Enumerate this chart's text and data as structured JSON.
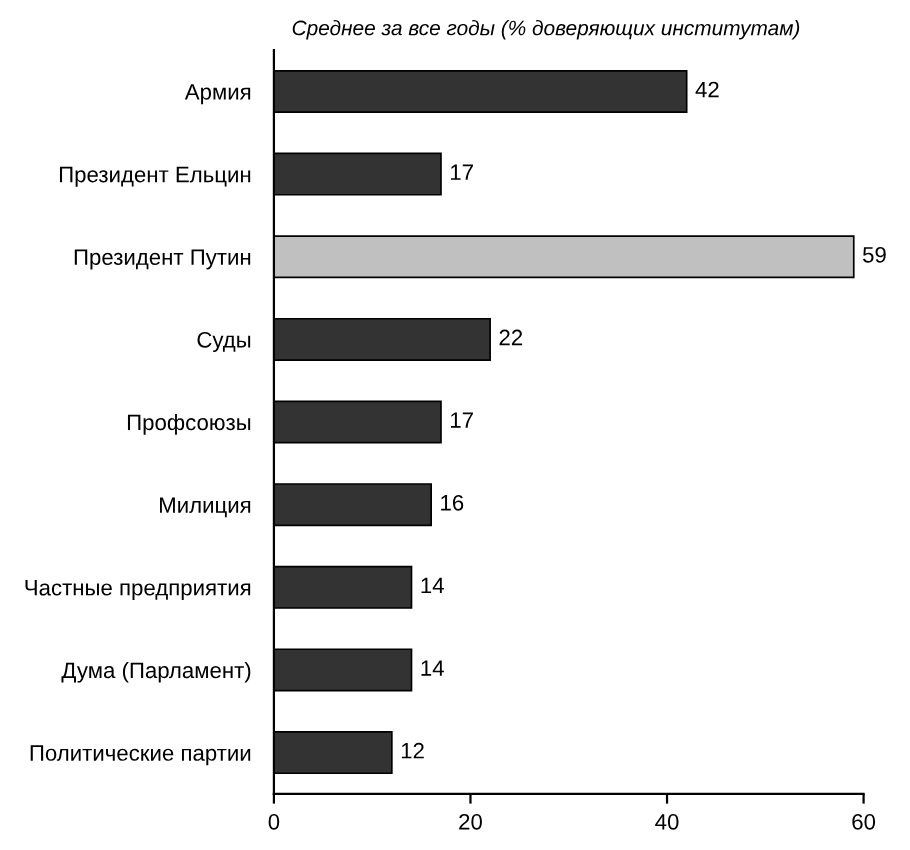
{
  "chart_data": {
    "type": "bar",
    "orientation": "horizontal",
    "title": "Среднее за все годы (% доверяющих институтам)",
    "categories": [
      "Армия",
      "Президент Ельцин",
      "Президент Путин",
      "Суды",
      "Профсоюзы",
      "Милиция",
      "Частные предприятия",
      "Дума (Парламент)",
      "Политические партии"
    ],
    "values": [
      42,
      17,
      59,
      22,
      17,
      16,
      14,
      14,
      12
    ],
    "colors": [
      "#333333",
      "#333333",
      "#c0c0c0",
      "#333333",
      "#333333",
      "#333333",
      "#333333",
      "#333333",
      "#333333"
    ],
    "xlim": [
      0,
      60
    ],
    "xticks": [
      0,
      20,
      40,
      60
    ],
    "data_labels": true,
    "grid": false,
    "legend": false
  }
}
